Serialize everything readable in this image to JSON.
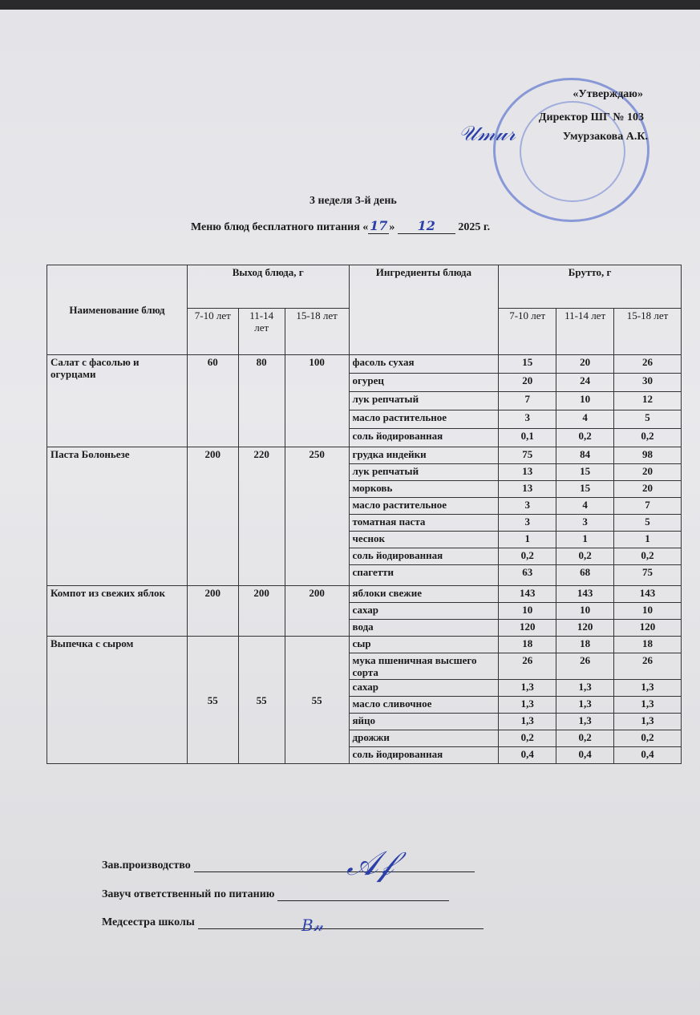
{
  "approval": {
    "line1": "«Утверждаю»",
    "line2": "Директор ШГ  № 103",
    "line3": "Умурзакова А.К."
  },
  "heading": {
    "week_day": "3 неделя 3-й день",
    "menu_prefix": "Меню блюд бесплатного питания «",
    "day": "17",
    "month": "12",
    "year": "2025 г."
  },
  "table": {
    "headers": {
      "name": "Наименование блюд",
      "output": "Выход блюда, г",
      "ingredients": "Ингредиенты блюда",
      "gross": "Брутто, г",
      "ages": [
        "7-10 лет",
        "11-14 лет",
        "15-18 лет"
      ]
    },
    "dishes": [
      {
        "name": "Салат с фасолью и огурцами",
        "output": [
          "60",
          "80",
          "100"
        ],
        "ingredients": [
          [
            "фасоль сухая",
            "15",
            "20",
            "26"
          ],
          [
            "огурец",
            "20",
            "24",
            "30"
          ],
          [
            "лук репчатый",
            "7",
            "10",
            "12"
          ],
          [
            "масло растительное",
            "3",
            "4",
            "5"
          ],
          [
            "соль йодированная",
            "0,1",
            "0,2",
            "0,2"
          ]
        ]
      },
      {
        "name": "Паста Болоньезе",
        "output": [
          "200",
          "220",
          "250"
        ],
        "ingredients": [
          [
            "грудка индейки",
            "75",
            "84",
            "98"
          ],
          [
            "лук репчатый",
            "13",
            "15",
            "20"
          ],
          [
            "морковь",
            "13",
            "15",
            "20"
          ],
          [
            "масло растительное",
            "3",
            "4",
            "7"
          ],
          [
            "томатная паста",
            "3",
            "3",
            "5"
          ],
          [
            "чеснок",
            "1",
            "1",
            "1"
          ],
          [
            "соль йодированная",
            "0,2",
            "0,2",
            "0,2"
          ],
          [
            "спагетти",
            "63",
            "68",
            "75"
          ]
        ]
      },
      {
        "name": "Компот из свежих яблок",
        "output": [
          "200",
          "200",
          "200"
        ],
        "ingredients": [
          [
            "яблоки свежие",
            "143",
            "143",
            "143"
          ],
          [
            "сахар",
            "10",
            "10",
            "10"
          ],
          [
            "вода",
            "120",
            "120",
            "120"
          ]
        ]
      },
      {
        "name": "Выпечка с сыром",
        "output": [
          "55",
          "55",
          "55"
        ],
        "ingredients": [
          [
            "сыр",
            "18",
            "18",
            "18"
          ],
          [
            "мука пшеничная высшего сорта",
            "26",
            "26",
            "26"
          ],
          [
            "сахар",
            "1,3",
            "1,3",
            "1,3"
          ],
          [
            "масло сливочное",
            "1,3",
            "1,3",
            "1,3"
          ],
          [
            "яйцо",
            "1,3",
            "1,3",
            "1,3"
          ],
          [
            "дрожжи",
            "0,2",
            "0,2",
            "0,2"
          ],
          [
            "соль йодированная",
            "0,4",
            "0,4",
            "0,4"
          ]
        ]
      }
    ]
  },
  "signatures": [
    {
      "label": "Зав.производство"
    },
    {
      "label": "Завуч ответственный по питанию"
    },
    {
      "label": "Медсестра школы"
    }
  ],
  "colors": {
    "ink": "#1a1a1a",
    "stamp": "#3c5ac8",
    "paper": "#e6e6e9"
  }
}
